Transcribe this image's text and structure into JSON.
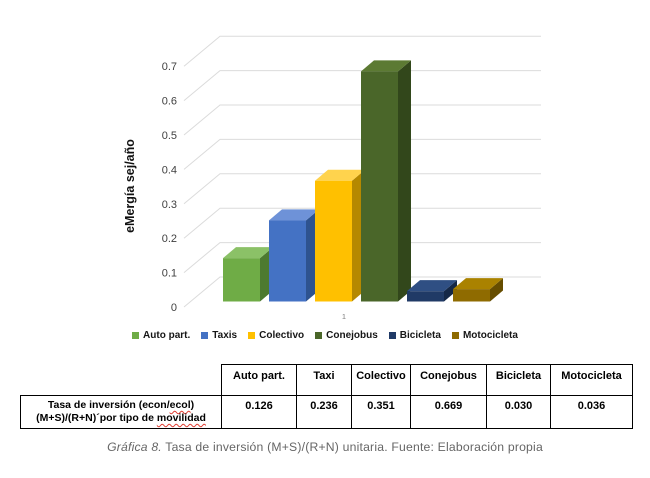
{
  "chart_data": {
    "type": "bar",
    "variant": "3d-clustered-column",
    "title": "",
    "ylabel": "eMergía sej/año",
    "xlabel": "",
    "x_tick_label": "1",
    "ylim": [
      0,
      0.7
    ],
    "yticks": [
      "0",
      "0.1",
      "0.2",
      "0.3",
      "0.4",
      "0.5",
      "0.6",
      "0.7"
    ],
    "grid": true,
    "legend_position": "bottom",
    "categories": [
      "Auto part.",
      "Taxis",
      "Colectivo",
      "Conejobus",
      "Bicicleta",
      "Motocicleta"
    ],
    "values": [
      0.126,
      0.236,
      0.351,
      0.669,
      0.03,
      0.036
    ],
    "series_colors": [
      {
        "front": "#6FAC46",
        "top": "#8BC167",
        "side": "#4D7A2F"
      },
      {
        "front": "#4472C4",
        "top": "#6E92D8",
        "side": "#2E5390"
      },
      {
        "front": "#FFC000",
        "top": "#FFD34D",
        "side": "#B58800"
      },
      {
        "front": "#4A6629",
        "top": "#5C7A33",
        "side": "#32471B"
      },
      {
        "front": "#203A66",
        "top": "#2F4F83",
        "side": "#152847"
      },
      {
        "front": "#8F6B00",
        "top": "#AA8200",
        "side": "#664D00"
      }
    ],
    "grid_color": "#DBDBDB",
    "tick_color": "#3F3F3F",
    "x_tick_color": "#808080"
  },
  "table": {
    "header": [
      "Auto part.",
      "Taxi",
      "Colectivo",
      "Conejobus",
      "Bicicleta",
      "Motocicleta"
    ],
    "row_label": {
      "line1_pre": "Tasa de inversión (econ/",
      "line1_spellcheck": "ecol",
      "line1_post": ")",
      "line2_pre": "(M+S)/(R+N)´por tipo de ",
      "line2_spellcheck": "movilidad"
    },
    "values": [
      "0.126",
      "0.236",
      "0.351",
      "0.669",
      "0.030",
      "0.036"
    ]
  },
  "caption": {
    "label": "Gráfica 8.",
    "text": " Tasa de inversión (M+S)/(R+N) unitaria. Fuente: Elaboración propia"
  }
}
